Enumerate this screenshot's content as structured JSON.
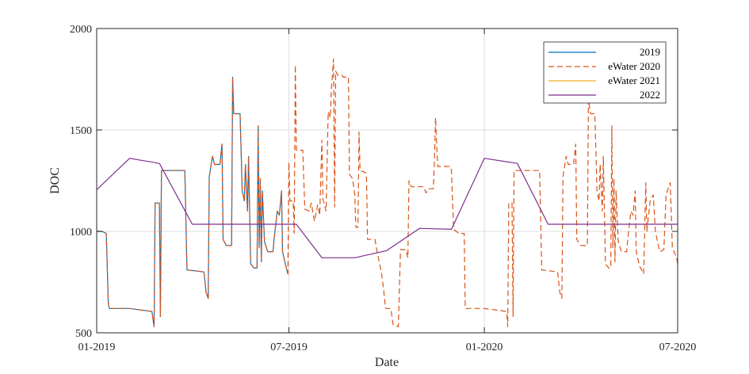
{
  "chart_data": {
    "type": "line",
    "xlabel": "Date",
    "ylabel": "DOC",
    "xlim": [
      "2019-01-01",
      "2020-07-01"
    ],
    "ylim": [
      500,
      2000
    ],
    "xticks": [
      "01-2019",
      "07-2019",
      "01-2020",
      "07-2020"
    ],
    "yticks": [
      500,
      1000,
      1500,
      2000
    ],
    "grid": true,
    "legend_position": "top-right",
    "colors": {
      "2019": "#0072BD",
      "eWater 2020": "#D95319",
      "eWater 2021": "#EDB120",
      "2022": "#7E2F8E"
    },
    "series": [
      {
        "name": "2019",
        "style": "solid",
        "points": [
          [
            "2019-01-01",
            1000
          ],
          [
            "2019-01-06",
            1000
          ],
          [
            "2019-01-10",
            990
          ],
          [
            "2019-01-12",
            640
          ],
          [
            "2019-01-13",
            620
          ],
          [
            "2019-02-01",
            620
          ],
          [
            "2019-02-15",
            610
          ],
          [
            "2019-02-22",
            605
          ],
          [
            "2019-02-24",
            530
          ],
          [
            "2019-02-25",
            1140
          ],
          [
            "2019-03-01",
            1140
          ],
          [
            "2019-03-02",
            580
          ],
          [
            "2019-03-03",
            1300
          ],
          [
            "2019-03-25",
            1300
          ],
          [
            "2019-03-27",
            810
          ],
          [
            "2019-04-12",
            800
          ],
          [
            "2019-04-14",
            700
          ],
          [
            "2019-04-16",
            670
          ],
          [
            "2019-04-17",
            1270
          ],
          [
            "2019-04-20",
            1370
          ],
          [
            "2019-04-22",
            1330
          ],
          [
            "2019-04-27",
            1330
          ],
          [
            "2019-04-29",
            1430
          ],
          [
            "2019-04-30",
            960
          ],
          [
            "2019-05-03",
            930
          ],
          [
            "2019-05-08",
            930
          ],
          [
            "2019-05-09",
            1760
          ],
          [
            "2019-05-10",
            1580
          ],
          [
            "2019-05-16",
            1580
          ],
          [
            "2019-05-18",
            1200
          ],
          [
            "2019-05-20",
            1150
          ],
          [
            "2019-05-21",
            1330
          ],
          [
            "2019-05-23",
            1100
          ],
          [
            "2019-05-24",
            1370
          ],
          [
            "2019-05-26",
            840
          ],
          [
            "2019-05-29",
            820
          ],
          [
            "2019-06-01",
            820
          ],
          [
            "2019-06-02",
            1520
          ],
          [
            "2019-06-03",
            920
          ],
          [
            "2019-06-04",
            1260
          ],
          [
            "2019-06-05",
            850
          ],
          [
            "2019-06-06",
            1200
          ],
          [
            "2019-06-08",
            950
          ],
          [
            "2019-06-11",
            900
          ],
          [
            "2019-06-16",
            900
          ],
          [
            "2019-06-17",
            960
          ],
          [
            "2019-06-20",
            1100
          ],
          [
            "2019-06-22",
            1080
          ],
          [
            "2019-06-24",
            1200
          ],
          [
            "2019-06-25",
            900
          ],
          [
            "2019-06-28",
            830
          ],
          [
            "2019-06-29",
            810
          ],
          [
            "2019-06-30",
            790
          ]
        ]
      },
      {
        "name": "eWater 2020",
        "style": "dashed",
        "points": [
          [
            "2019-01-01",
            1000
          ],
          [
            "2019-01-06",
            1000
          ],
          [
            "2019-01-10",
            990
          ],
          [
            "2019-01-12",
            640
          ],
          [
            "2019-01-13",
            620
          ],
          [
            "2019-02-01",
            620
          ],
          [
            "2019-02-15",
            610
          ],
          [
            "2019-02-22",
            605
          ],
          [
            "2019-02-24",
            530
          ],
          [
            "2019-02-25",
            1140
          ],
          [
            "2019-03-01",
            1140
          ],
          [
            "2019-03-02",
            580
          ],
          [
            "2019-03-03",
            1300
          ],
          [
            "2019-03-25",
            1300
          ],
          [
            "2019-03-27",
            810
          ],
          [
            "2019-04-12",
            800
          ],
          [
            "2019-04-14",
            700
          ],
          [
            "2019-04-16",
            670
          ],
          [
            "2019-04-17",
            1270
          ],
          [
            "2019-04-20",
            1370
          ],
          [
            "2019-04-22",
            1330
          ],
          [
            "2019-04-27",
            1330
          ],
          [
            "2019-04-29",
            1430
          ],
          [
            "2019-04-30",
            960
          ],
          [
            "2019-05-03",
            930
          ],
          [
            "2019-05-08",
            930
          ],
          [
            "2019-05-09",
            1760
          ],
          [
            "2019-05-10",
            1580
          ],
          [
            "2019-05-16",
            1580
          ],
          [
            "2019-05-18",
            1200
          ],
          [
            "2019-05-20",
            1150
          ],
          [
            "2019-05-21",
            1330
          ],
          [
            "2019-05-23",
            1100
          ],
          [
            "2019-05-24",
            1370
          ],
          [
            "2019-05-26",
            840
          ],
          [
            "2019-05-29",
            820
          ],
          [
            "2019-06-01",
            820
          ],
          [
            "2019-06-02",
            1520
          ],
          [
            "2019-06-03",
            920
          ],
          [
            "2019-06-04",
            1260
          ],
          [
            "2019-06-05",
            850
          ],
          [
            "2019-06-06",
            1200
          ],
          [
            "2019-06-08",
            950
          ],
          [
            "2019-06-11",
            900
          ],
          [
            "2019-06-16",
            900
          ],
          [
            "2019-06-17",
            960
          ],
          [
            "2019-06-20",
            1100
          ],
          [
            "2019-06-22",
            1080
          ],
          [
            "2019-06-24",
            1200
          ],
          [
            "2019-06-25",
            900
          ],
          [
            "2019-06-28",
            830
          ],
          [
            "2019-06-29",
            810
          ],
          [
            "2019-06-30",
            790
          ],
          [
            "2019-07-01",
            1340
          ],
          [
            "2019-07-02",
            1150
          ],
          [
            "2019-07-05",
            1150
          ],
          [
            "2019-07-06",
            990
          ],
          [
            "2019-07-07",
            1820
          ],
          [
            "2019-07-08",
            1400
          ],
          [
            "2019-07-14",
            1400
          ],
          [
            "2019-07-16",
            1110
          ],
          [
            "2019-07-20",
            1100
          ],
          [
            "2019-07-22",
            1140
          ],
          [
            "2019-07-25",
            1050
          ],
          [
            "2019-07-28",
            1130
          ],
          [
            "2019-07-30",
            1080
          ],
          [
            "2019-08-01",
            1450
          ],
          [
            "2019-08-02",
            1160
          ],
          [
            "2019-08-05",
            1100
          ],
          [
            "2019-08-07",
            1590
          ],
          [
            "2019-08-09",
            1560
          ],
          [
            "2019-08-10",
            1700
          ],
          [
            "2019-08-12",
            1850
          ],
          [
            "2019-08-13",
            1120
          ],
          [
            "2019-08-14",
            1790
          ],
          [
            "2019-08-16",
            1770
          ],
          [
            "2019-08-20",
            1770
          ],
          [
            "2019-08-21",
            1760
          ],
          [
            "2019-08-26",
            1760
          ],
          [
            "2019-08-27",
            1280
          ],
          [
            "2019-08-30",
            1260
          ],
          [
            "2019-09-01",
            1180
          ],
          [
            "2019-09-02",
            1020
          ],
          [
            "2019-09-04",
            1020
          ],
          [
            "2019-09-05",
            1490
          ],
          [
            "2019-09-06",
            1300
          ],
          [
            "2019-09-11",
            1290
          ],
          [
            "2019-09-12",
            1270
          ],
          [
            "2019-09-13",
            960
          ],
          [
            "2019-09-20",
            960
          ],
          [
            "2019-09-22",
            900
          ],
          [
            "2019-09-26",
            800
          ],
          [
            "2019-09-28",
            720
          ],
          [
            "2019-09-30",
            620
          ],
          [
            "2019-10-05",
            620
          ],
          [
            "2019-10-07",
            540
          ],
          [
            "2019-10-12",
            530
          ],
          [
            "2019-10-14",
            910
          ],
          [
            "2019-10-19",
            910
          ],
          [
            "2019-10-21",
            870
          ],
          [
            "2019-10-22",
            1250
          ],
          [
            "2019-10-24",
            1220
          ],
          [
            "2019-11-05",
            1220
          ],
          [
            "2019-11-07",
            1190
          ],
          [
            "2019-11-10",
            1210
          ],
          [
            "2019-11-14",
            1210
          ],
          [
            "2019-11-15",
            1350
          ],
          [
            "2019-11-16",
            1560
          ],
          [
            "2019-11-18",
            1320
          ],
          [
            "2019-11-30",
            1320
          ],
          [
            "2019-12-01",
            1300
          ],
          [
            "2019-12-03",
            1010
          ],
          [
            "2019-12-08",
            990
          ],
          [
            "2019-12-13",
            990
          ],
          [
            "2019-12-14",
            620
          ],
          [
            "2020-01-01",
            620
          ],
          [
            "2020-01-15",
            610
          ],
          [
            "2020-01-22",
            605
          ],
          [
            "2020-01-23",
            530
          ],
          [
            "2020-01-24",
            1140
          ],
          [
            "2020-01-27",
            1140
          ],
          [
            "2020-01-28",
            580
          ],
          [
            "2020-01-29",
            1300
          ],
          [
            "2020-02-22",
            1300
          ],
          [
            "2020-02-24",
            810
          ],
          [
            "2020-03-10",
            800
          ],
          [
            "2020-03-12",
            700
          ],
          [
            "2020-03-14",
            670
          ],
          [
            "2020-03-15",
            1270
          ],
          [
            "2020-03-18",
            1370
          ],
          [
            "2020-03-20",
            1330
          ],
          [
            "2020-03-25",
            1330
          ],
          [
            "2020-03-27",
            1430
          ],
          [
            "2020-03-28",
            960
          ],
          [
            "2020-04-01",
            930
          ],
          [
            "2020-04-07",
            930
          ],
          [
            "2020-04-08",
            1650
          ],
          [
            "2020-04-10",
            1580
          ],
          [
            "2020-04-14",
            1580
          ],
          [
            "2020-04-16",
            1200
          ],
          [
            "2020-04-18",
            1150
          ],
          [
            "2020-04-19",
            1330
          ],
          [
            "2020-04-21",
            1100
          ],
          [
            "2020-04-22",
            1370
          ],
          [
            "2020-04-24",
            840
          ],
          [
            "2020-04-27",
            820
          ],
          [
            "2020-04-29",
            820
          ],
          [
            "2020-04-30",
            1520
          ],
          [
            "2020-05-01",
            920
          ],
          [
            "2020-05-02",
            1260
          ],
          [
            "2020-05-03",
            850
          ],
          [
            "2020-05-04",
            1200
          ],
          [
            "2020-05-06",
            950
          ],
          [
            "2020-05-09",
            900
          ],
          [
            "2020-05-14",
            900
          ],
          [
            "2020-05-15",
            960
          ],
          [
            "2020-05-18",
            1100
          ],
          [
            "2020-05-20",
            1080
          ],
          [
            "2020-05-22",
            1200
          ],
          [
            "2020-05-23",
            900
          ],
          [
            "2020-05-26",
            830
          ],
          [
            "2020-05-28",
            810
          ],
          [
            "2020-05-30",
            790
          ],
          [
            "2020-06-01",
            1240
          ],
          [
            "2020-06-02",
            1000
          ],
          [
            "2020-06-05",
            1150
          ],
          [
            "2020-06-08",
            1180
          ],
          [
            "2020-06-10",
            1000
          ],
          [
            "2020-06-14",
            900
          ],
          [
            "2020-06-18",
            910
          ],
          [
            "2020-06-20",
            1180
          ],
          [
            "2020-06-24",
            1240
          ],
          [
            "2020-06-26",
            920
          ],
          [
            "2020-06-30",
            870
          ],
          [
            "2020-07-01",
            840
          ]
        ]
      },
      {
        "name": "eWater 2021",
        "style": "solid",
        "points": []
      },
      {
        "name": "2022",
        "style": "solid",
        "points": [
          [
            "2019-01-01",
            1205
          ],
          [
            "2019-02-01",
            1360
          ],
          [
            "2019-03-01",
            1335
          ],
          [
            "2019-04-01",
            1035
          ],
          [
            "2019-06-01",
            1035
          ],
          [
            "2019-07-08",
            1035
          ],
          [
            "2019-08-01",
            870
          ],
          [
            "2019-09-01",
            870
          ],
          [
            "2019-10-01",
            905
          ],
          [
            "2019-11-01",
            1015
          ],
          [
            "2019-12-01",
            1010
          ],
          [
            "2020-01-01",
            1360
          ],
          [
            "2020-02-01",
            1335
          ],
          [
            "2020-03-01",
            1035
          ],
          [
            "2020-07-01",
            1035
          ]
        ]
      }
    ]
  }
}
